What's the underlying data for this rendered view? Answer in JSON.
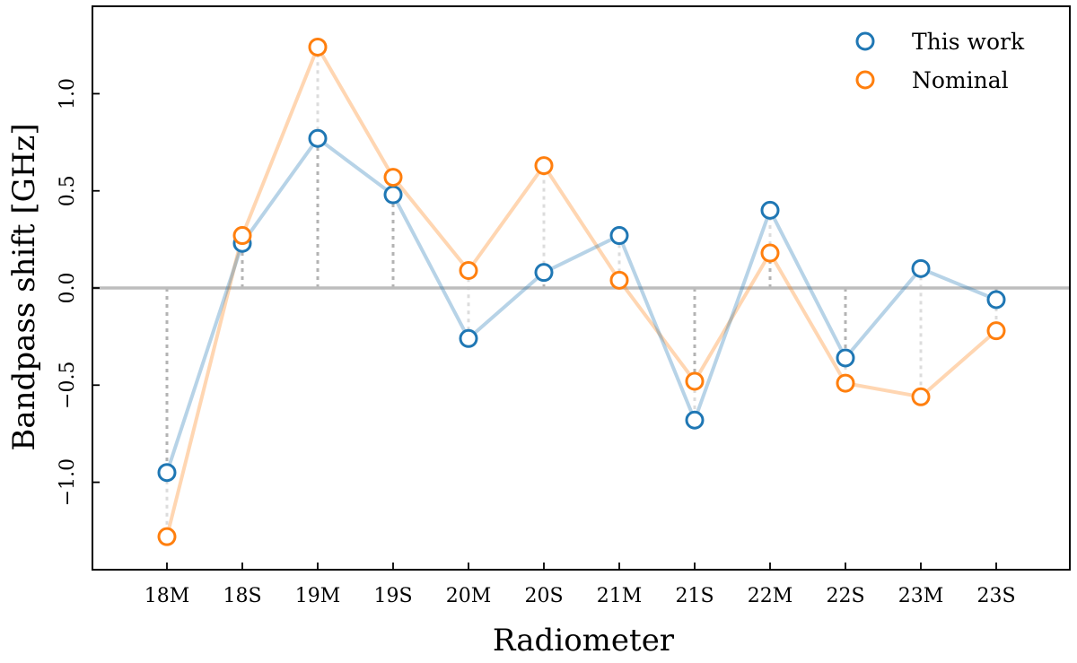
{
  "chart_data": {
    "type": "line",
    "xlabel": "Radiometer",
    "ylabel": "Bandpass shift [GHz]",
    "categories": [
      "18M",
      "18S",
      "19M",
      "19S",
      "20M",
      "20S",
      "21M",
      "21S",
      "22M",
      "22S",
      "23M",
      "23S"
    ],
    "ylim": [
      -1.45,
      1.45
    ],
    "yticks": [
      -1.0,
      -0.5,
      0.0,
      0.5,
      1.0
    ],
    "ytick_labels": [
      "−1.0",
      "−0.5",
      "0.0",
      "0.5",
      "1.0"
    ],
    "zero_line": true,
    "grid": false,
    "legend_position": "top-right",
    "series": [
      {
        "name": "This work",
        "color": "#1f77b4",
        "values": [
          -0.95,
          0.23,
          0.77,
          0.48,
          -0.26,
          0.08,
          0.27,
          -0.68,
          0.4,
          -0.36,
          0.1,
          -0.06
        ]
      },
      {
        "name": "Nominal",
        "color": "#ff7f0e",
        "values": [
          -1.28,
          0.27,
          1.24,
          0.57,
          0.09,
          0.63,
          0.04,
          -0.48,
          0.18,
          -0.49,
          -0.56,
          -0.22
        ]
      }
    ]
  }
}
